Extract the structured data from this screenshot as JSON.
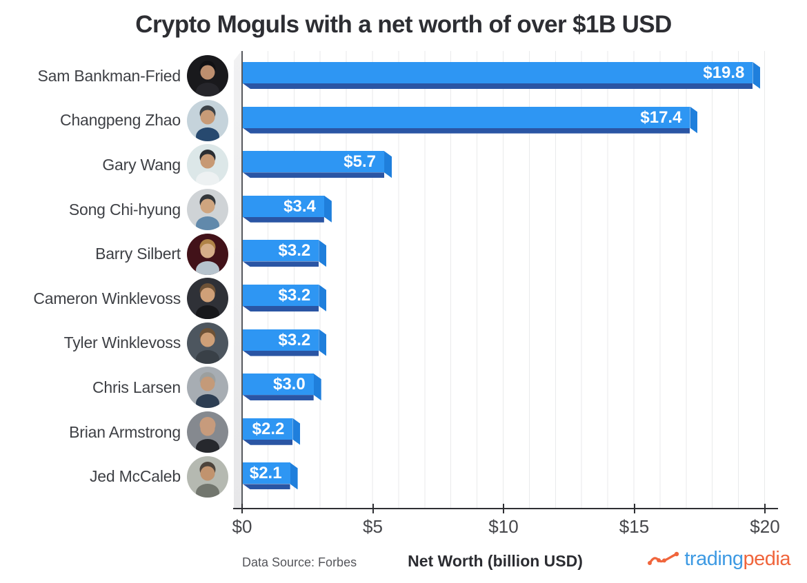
{
  "title": "Crypto Moguls with a net worth of over $1B USD",
  "chart_data": {
    "type": "bar",
    "orientation": "horizontal",
    "title": "Crypto Moguls with a net worth of over $1B USD",
    "categories": [
      "Sam Bankman-Fried",
      "Changpeng Zhao",
      "Gary Wang",
      "Song Chi-hyung",
      "Barry Silbert",
      "Cameron Winklevoss",
      "Tyler Winklevoss",
      "Chris Larsen",
      "Brian Armstrong",
      "Jed McCaleb"
    ],
    "values": [
      19.8,
      17.4,
      5.7,
      3.4,
      3.2,
      3.2,
      3.2,
      3.0,
      2.2,
      2.1
    ],
    "value_labels": [
      "$19.8",
      "$17.4",
      "$5.7",
      "$3.4",
      "$3.2",
      "$3.2",
      "$3.2",
      "$3.0",
      "$2.2",
      "$2.1"
    ],
    "xlabel": "Net Worth (billion USD)",
    "ylabel": "",
    "xlim": [
      0,
      20
    ],
    "xticks": [
      {
        "value": 0,
        "label": "$0"
      },
      {
        "value": 5,
        "label": "$5"
      },
      {
        "value": 10,
        "label": "$10"
      },
      {
        "value": 15,
        "label": "$15"
      },
      {
        "value": 20,
        "label": "$20"
      }
    ],
    "grid": "vertical gridlines every $1",
    "legend": "none",
    "bar_style": "3D extruded bars, value labels inside right end"
  },
  "people": [
    {
      "name": "Sam Bankman-Fried",
      "value": 19.8,
      "label": "$19.8",
      "avatar": {
        "bg": "#19191c",
        "hair": "#111114",
        "head": "#bd8f6f",
        "body": "#26262b"
      }
    },
    {
      "name": "Changpeng Zhao",
      "value": 17.4,
      "label": "$17.4",
      "avatar": {
        "bg": "#c5d3db",
        "hair": "#3c4248",
        "head": "#c89b77",
        "body": "#27496f"
      }
    },
    {
      "name": "Gary Wang",
      "value": 5.7,
      "label": "$5.7",
      "avatar": {
        "bg": "#dce7e8",
        "hair": "#2a2d32",
        "head": "#c79974",
        "body": "#edf1f2"
      }
    },
    {
      "name": "Song Chi-hyung",
      "value": 3.4,
      "label": "$3.4",
      "avatar": {
        "bg": "#cfd3d6",
        "hair": "#33373b",
        "head": "#cfa57f",
        "body": "#6189ab"
      }
    },
    {
      "name": "Barry Silbert",
      "value": 3.2,
      "label": "$3.2",
      "avatar": {
        "bg": "#421219",
        "hair": "#b08347",
        "head": "#d6ae8a",
        "body": "#b6c3cd"
      }
    },
    {
      "name": "Cameron Winklevoss",
      "value": 3.2,
      "label": "$3.2",
      "avatar": {
        "bg": "#2f3137",
        "hair": "#6e5236",
        "head": "#cfa078",
        "body": "#17181b"
      }
    },
    {
      "name": "Tyler Winklevoss",
      "value": 3.2,
      "label": "$3.2",
      "avatar": {
        "bg": "#4d565f",
        "hair": "#6e5236",
        "head": "#cfa078",
        "body": "#394047"
      }
    },
    {
      "name": "Chris Larsen",
      "value": 3.0,
      "label": "$3.0",
      "avatar": {
        "bg": "#a7adb3",
        "hair": "#9c9f9e",
        "head": "#c49a79",
        "body": "#2d3e53"
      }
    },
    {
      "name": "Brian Armstrong",
      "value": 2.2,
      "label": "$2.2",
      "avatar": {
        "bg": "#85898f",
        "hair": "#c79b7c",
        "head": "#c79b7c",
        "body": "#26282d"
      }
    },
    {
      "name": "Jed McCaleb",
      "value": 2.1,
      "label": "$2.1",
      "avatar": {
        "bg": "#b5b9b1",
        "hair": "#4d443c",
        "head": "#c1936e",
        "body": "#72766e"
      }
    }
  ],
  "footer": {
    "source": "Data Source: Forbes",
    "xlabel": "Net Worth (billion USD)",
    "logo": {
      "prefix": "trading",
      "suffix": "pedia"
    }
  },
  "colors": {
    "bar_main": "#2e96f3",
    "bar_side": "#1f7fdc",
    "bar_dark": "#2a55a4",
    "grid": "#e9eaeb",
    "axis": "#2e2f33",
    "logo_blue": "#3e9ae3",
    "logo_orange": "#f0653c"
  }
}
